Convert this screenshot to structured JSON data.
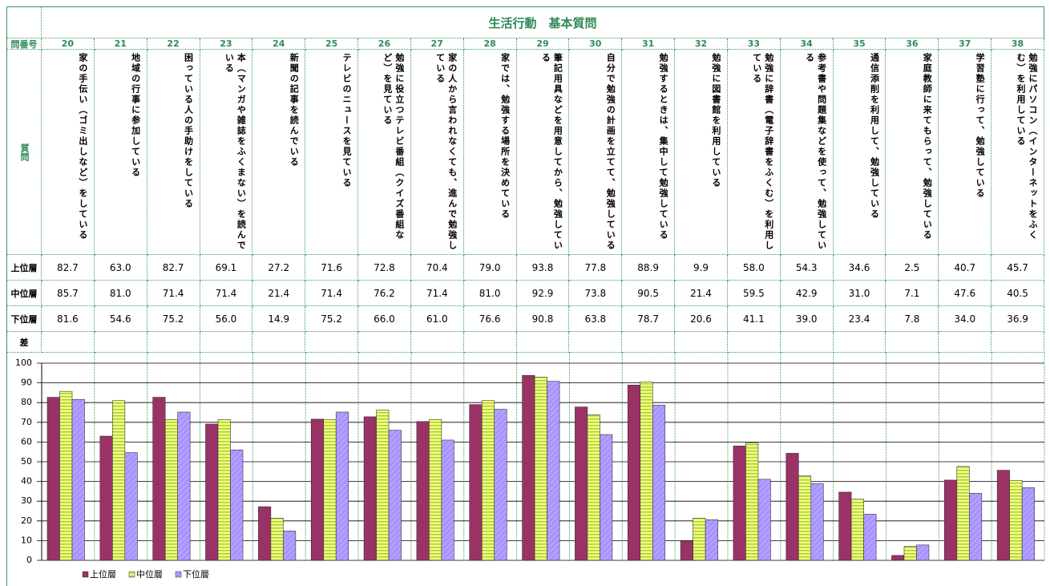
{
  "table": {
    "title": "生活行動　基本質問",
    "number_header": "問番号",
    "question_header": "質問",
    "diff_header": "差",
    "questions": [
      "家の手伝い（ゴミ出しなど）をしている",
      "地域の行事に参加している",
      "困っている人の手助けをしている",
      "本（マンガや雑誌をふくまない）を読んでいる",
      "新聞の記事を読んでいる",
      "テレビのニュースを見ている",
      "勉強に役立つテレビ番組（クイズ番組など）を見ている",
      "家の人から言われなくても、進んで勉強している",
      "家では、勉強する場所を決めている",
      "筆記用具などを用意してから、勉強している",
      "自分で勉強の計画を立てて、勉強している",
      "勉強するときは、集中して勉強している",
      "勉強に図書館を利用している",
      "勉強に辞書（電子辞書をふくむ）を利用している",
      "参考書や問題集などを使って、勉強している",
      "通信添削を利用して、勉強している",
      "家庭教師に来てもらって、勉強している",
      "学習塾に行って、勉強している",
      "勉強にパソコン（インターネットをふくむ）を利用している"
    ]
  },
  "chart_data": {
    "type": "bar",
    "categories": [
      "20",
      "21",
      "22",
      "23",
      "24",
      "25",
      "26",
      "27",
      "28",
      "29",
      "30",
      "31",
      "32",
      "33",
      "34",
      "35",
      "36",
      "37",
      "38"
    ],
    "series": [
      {
        "name": "上位層",
        "color": "#993366",
        "values": [
          82.7,
          63.0,
          82.7,
          69.1,
          27.2,
          71.6,
          72.8,
          70.4,
          79.0,
          93.8,
          77.8,
          88.9,
          9.9,
          58.0,
          54.3,
          34.6,
          2.5,
          40.7,
          45.7
        ],
        "value_labels": [
          "82.7",
          "63.0",
          "82.7",
          "69.1",
          "27.2",
          "71.6",
          "72.8",
          "70.4",
          "79.0",
          "93.8",
          "77.8",
          "88.9",
          "9.9",
          "58.0",
          "54.3",
          "34.6",
          "2.5",
          "40.7",
          "45.7"
        ]
      },
      {
        "name": "中位層",
        "color": "#ffff66",
        "values": [
          85.7,
          81.0,
          71.4,
          71.4,
          21.4,
          71.4,
          76.2,
          71.4,
          81.0,
          92.9,
          73.8,
          90.5,
          21.4,
          59.5,
          42.9,
          31.0,
          7.1,
          47.6,
          40.5
        ],
        "value_labels": [
          "85.7",
          "81.0",
          "71.4",
          "71.4",
          "21.4",
          "71.4",
          "76.2",
          "71.4",
          "81.0",
          "92.9",
          "73.8",
          "90.5",
          "21.4",
          "59.5",
          "42.9",
          "31.0",
          "7.1",
          "47.6",
          "40.5"
        ]
      },
      {
        "name": "下位層",
        "color": "#9999ff",
        "values": [
          81.6,
          54.6,
          75.2,
          56.0,
          14.9,
          75.2,
          66.0,
          61.0,
          76.6,
          90.8,
          63.8,
          78.7,
          20.6,
          41.1,
          39.0,
          23.4,
          7.8,
          34.0,
          36.9
        ],
        "value_labels": [
          "81.6",
          "54.6",
          "75.2",
          "56.0",
          "14.9",
          "75.2",
          "66.0",
          "61.0",
          "76.6",
          "90.8",
          "63.8",
          "78.7",
          "20.6",
          "41.1",
          "39.0",
          "23.4",
          "7.8",
          "34.0",
          "36.9"
        ]
      }
    ],
    "ylim": [
      0,
      100
    ],
    "yticks": [
      0,
      10,
      20,
      30,
      40,
      50,
      60,
      70,
      80,
      90,
      100
    ],
    "grid": true
  }
}
